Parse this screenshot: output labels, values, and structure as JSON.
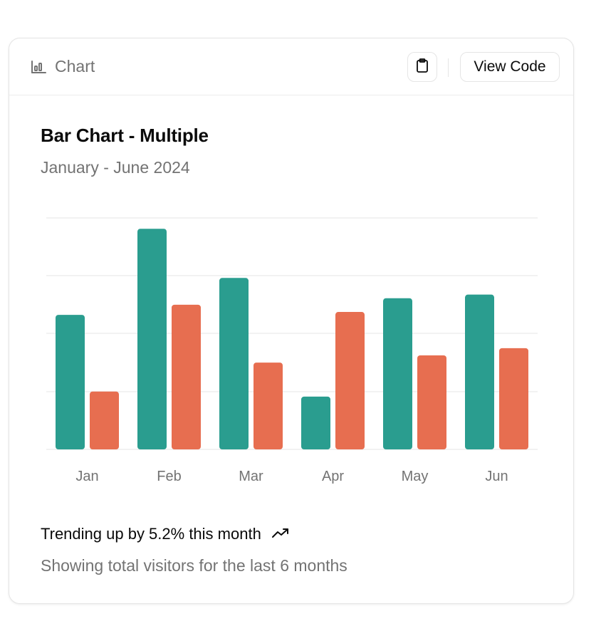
{
  "header": {
    "label": "Chart",
    "icon": "bar-chart-icon",
    "copy_icon": "clipboard-icon",
    "view_code_label": "View Code"
  },
  "card": {
    "title": "Bar Chart - Multiple",
    "subtitle": "January - June 2024"
  },
  "footer": {
    "trend_text": "Trending up by 5.2% this month",
    "trend_icon": "trending-up-icon",
    "note": "Showing total visitors for the last 6 months"
  },
  "colors": {
    "series1": "#2a9d8f",
    "series2": "#e76e50",
    "grid": "#ededed",
    "tick": "#737373"
  },
  "chart_data": {
    "type": "bar",
    "title": "Bar Chart - Multiple",
    "subtitle": "January - June 2024",
    "categories": [
      "Jan",
      "Feb",
      "Mar",
      "Apr",
      "May",
      "Jun"
    ],
    "series": [
      {
        "values": [
          186,
          305,
          237,
          73,
          209,
          214
        ]
      },
      {
        "values": [
          80,
          200,
          120,
          190,
          130,
          140
        ]
      }
    ],
    "ylim": [
      0,
      320
    ],
    "grid": true
  }
}
